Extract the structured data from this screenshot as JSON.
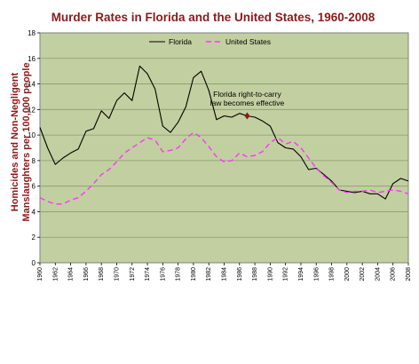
{
  "chart_data": {
    "type": "line",
    "title": "Murder Rates in Florida and the United States, 1960-2008",
    "ylabel_line1": "Homicides and Non-Negligent",
    "ylabel_line2": "Manslaughters per 100,000 people",
    "xlabel": "",
    "ylim": [
      0,
      18
    ],
    "yticks": [
      0,
      2,
      4,
      6,
      8,
      10,
      12,
      14,
      16,
      18
    ],
    "xlim": [
      1960,
      2008
    ],
    "xticks": [
      1960,
      1962,
      1964,
      1966,
      1968,
      1970,
      1972,
      1974,
      1976,
      1978,
      1980,
      1982,
      1984,
      1986,
      1988,
      1990,
      1992,
      1994,
      1996,
      1998,
      2000,
      2002,
      2004,
      2006,
      2008
    ],
    "grid": "horizontal",
    "legend_position": "top",
    "annotation": {
      "line1": "Florida right-to-carry",
      "line2": "law becomes effective",
      "x": 1987,
      "y": 11.5
    },
    "x": [
      1960,
      1961,
      1962,
      1963,
      1964,
      1965,
      1966,
      1967,
      1968,
      1969,
      1970,
      1971,
      1972,
      1973,
      1974,
      1975,
      1976,
      1977,
      1978,
      1979,
      1980,
      1981,
      1982,
      1983,
      1984,
      1985,
      1986,
      1987,
      1988,
      1989,
      1990,
      1991,
      1992,
      1993,
      1994,
      1995,
      1996,
      1997,
      1998,
      1999,
      2000,
      2001,
      2002,
      2003,
      2004,
      2005,
      2006,
      2007,
      2008
    ],
    "series": [
      {
        "name": "Florida",
        "color": "#000000",
        "style": "solid",
        "values": [
          10.6,
          9.0,
          7.7,
          8.2,
          8.6,
          8.9,
          10.3,
          10.5,
          11.9,
          11.3,
          12.7,
          13.3,
          12.7,
          15.4,
          14.8,
          13.6,
          10.7,
          10.2,
          11.0,
          12.2,
          14.5,
          15.0,
          13.5,
          11.2,
          11.5,
          11.4,
          11.7,
          11.5,
          11.4,
          11.1,
          10.7,
          9.4,
          9.0,
          8.9,
          8.3,
          7.3,
          7.4,
          6.9,
          6.4,
          5.7,
          5.6,
          5.5,
          5.6,
          5.4,
          5.4,
          5.0,
          6.2,
          6.6,
          6.4
        ]
      },
      {
        "name": "United States",
        "color": "#ff33ff",
        "style": "dashed",
        "values": [
          5.1,
          4.8,
          4.6,
          4.6,
          4.9,
          5.1,
          5.6,
          6.2,
          6.9,
          7.3,
          7.9,
          8.6,
          9.0,
          9.4,
          9.8,
          9.6,
          8.7,
          8.8,
          9.0,
          9.7,
          10.2,
          9.8,
          9.1,
          8.3,
          7.9,
          8.0,
          8.6,
          8.3,
          8.4,
          8.7,
          9.4,
          9.8,
          9.3,
          9.5,
          9.0,
          8.2,
          7.4,
          6.8,
          6.3,
          5.7,
          5.5,
          5.6,
          5.6,
          5.7,
          5.5,
          5.6,
          5.7,
          5.6,
          5.4
        ]
      }
    ]
  }
}
